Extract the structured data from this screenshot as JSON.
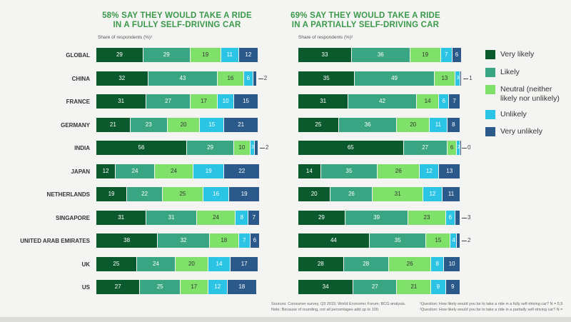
{
  "chart_data": [
    {
      "type": "bar",
      "orientation": "horizontal",
      "stacked": true,
      "title": "58% SAY THEY WOULD TAKE A RIDE IN A FULLY SELF-DRIVING CAR",
      "title_lines": [
        "58% SAY THEY WOULD TAKE A RIDE",
        "IN A FULLY SELF-DRIVING CAR"
      ],
      "subtitle": "Share of respondents (%)¹",
      "categories": [
        "GLOBAL",
        "CHINA",
        "FRANCE",
        "GERMANY",
        "INDIA",
        "JAPAN",
        "NETHERLANDS",
        "SINGAPORE",
        "UNITED ARAB EMIRATES",
        "UK",
        "US"
      ],
      "series": [
        {
          "name": "Very likely",
          "values": [
            29,
            32,
            31,
            21,
            56,
            12,
            19,
            31,
            38,
            25,
            27
          ]
        },
        {
          "name": "Likely",
          "values": [
            29,
            43,
            27,
            23,
            29,
            24,
            22,
            31,
            32,
            24,
            25
          ]
        },
        {
          "name": "Neutral (neither likely nor unlikely)",
          "values": [
            19,
            16,
            17,
            20,
            10,
            24,
            25,
            24,
            18,
            20,
            17
          ]
        },
        {
          "name": "Unlikely",
          "values": [
            11,
            6,
            10,
            15,
            3,
            19,
            16,
            8,
            7,
            14,
            12
          ]
        },
        {
          "name": "Very unlikely",
          "values": [
            12,
            2,
            15,
            21,
            2,
            22,
            19,
            7,
            6,
            17,
            18
          ]
        }
      ]
    },
    {
      "type": "bar",
      "orientation": "horizontal",
      "stacked": true,
      "title": "69% SAY THEY WOULD TAKE A RIDE IN A PARTIALLY SELF-DRIVING CAR",
      "title_lines": [
        "69% SAY THEY WOULD TAKE A RIDE",
        "IN A PARTIALLY SELF-DRIVING CAR"
      ],
      "subtitle": "Share of respondents (%)²",
      "categories": [
        "GLOBAL",
        "CHINA",
        "FRANCE",
        "GERMANY",
        "INDIA",
        "JAPAN",
        "NETHERLANDS",
        "SINGAPORE",
        "UNITED ARAB EMIRATES",
        "UK",
        "US"
      ],
      "series": [
        {
          "name": "Very likely",
          "values": [
            33,
            35,
            31,
            25,
            65,
            14,
            20,
            29,
            44,
            28,
            34
          ]
        },
        {
          "name": "Likely",
          "values": [
            36,
            49,
            42,
            36,
            27,
            35,
            26,
            39,
            35,
            28,
            27
          ]
        },
        {
          "name": "Neutral (neither likely nor unlikely)",
          "values": [
            19,
            13,
            14,
            20,
            6,
            26,
            31,
            23,
            15,
            26,
            21
          ]
        },
        {
          "name": "Unlikely",
          "values": [
            7,
            3,
            6,
            11,
            2,
            12,
            12,
            6,
            4,
            8,
            9
          ]
        },
        {
          "name": "Very unlikely",
          "values": [
            6,
            1,
            7,
            8,
            0,
            13,
            11,
            3,
            2,
            10,
            9
          ]
        }
      ]
    }
  ],
  "legend": [
    {
      "label": "Very likely",
      "color": "#0b5a2e"
    },
    {
      "label": "Likely",
      "color": "#3aa582"
    },
    {
      "label": "Neutral (neither likely nor unlikely)",
      "color": "#7fe06a"
    },
    {
      "label": "Unlikely",
      "color": "#2bc4e4"
    },
    {
      "label": "Very unlikely",
      "color": "#2b5a8a"
    }
  ],
  "colors": [
    "#0b5a2e",
    "#3aa582",
    "#7fe06a",
    "#2bc4e4",
    "#2b5a8a"
  ],
  "sources": {
    "line1": "Sources: Consumer survey, Q3 2015; World Economic Forum; BCG analysis.",
    "line2": "Note: Because of rounding, not all percentages add up to 100.",
    "footnote1": "¹Question: How likely would you be to take a ride in a fully self-driving car? N = 5,5",
    "footnote2": "²Question: How likely would you be to take a ride in a partially self-driving car? N ="
  }
}
